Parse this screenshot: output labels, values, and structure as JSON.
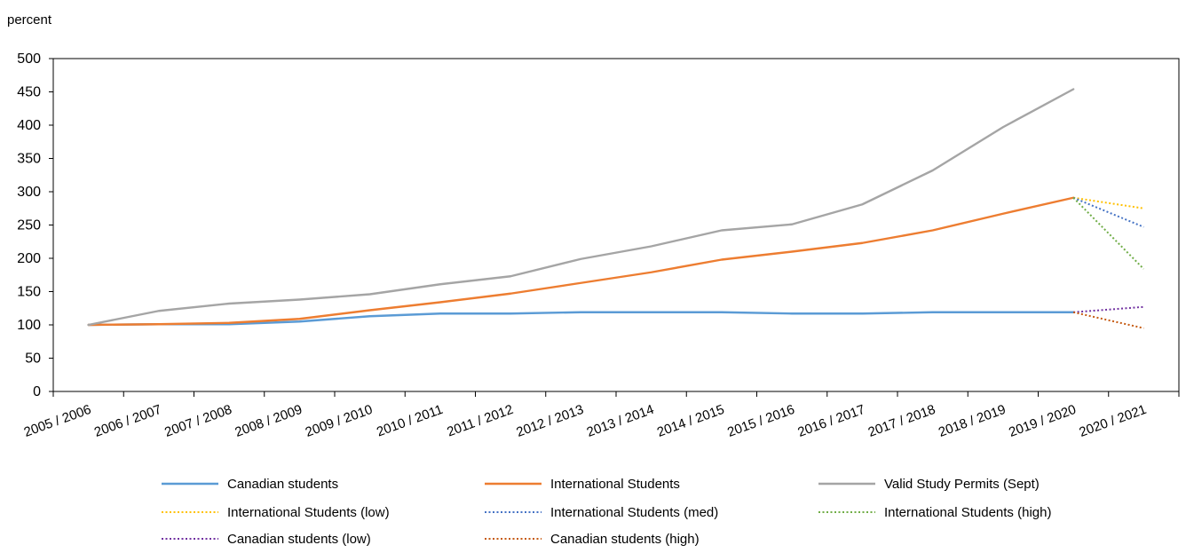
{
  "chart_data": {
    "type": "line",
    "ylabel": "percent",
    "ylim": [
      0,
      500
    ],
    "yticks": [
      0,
      50,
      100,
      150,
      200,
      250,
      300,
      350,
      400,
      450,
      500
    ],
    "categories": [
      "2005 / 2006",
      "2006 / 2007",
      "2007 / 2008",
      "2008 / 2009",
      "2009 / 2010",
      "2010 / 2011",
      "2011 / 2012",
      "2012 / 2013",
      "2013 / 2014",
      "2014 / 2015",
      "2015 / 2016",
      "2016 / 2017",
      "2017 / 2018",
      "2018 / 2019",
      "2019 / 2020",
      "2020 / 2021"
    ],
    "grid": false,
    "legend_position": "bottom",
    "series": [
      {
        "name": "Canadian students",
        "color": "#5B9BD5",
        "style": "solid",
        "values": [
          100,
          101,
          101,
          105,
          113,
          117,
          117,
          119,
          119,
          119,
          117,
          117,
          119,
          119,
          119,
          null
        ]
      },
      {
        "name": "International Students",
        "color": "#ED7D31",
        "style": "solid",
        "values": [
          100,
          101,
          103,
          109,
          122,
          134,
          147,
          163,
          179,
          198,
          210,
          223,
          242,
          267,
          291,
          null
        ]
      },
      {
        "name": "Valid Study Permits (Sept)",
        "color": "#A5A5A5",
        "style": "solid",
        "values": [
          100,
          121,
          132,
          138,
          146,
          161,
          173,
          199,
          218,
          242,
          251,
          281,
          332,
          397,
          454,
          null
        ]
      },
      {
        "name": "International Students (low)",
        "color": "#FFC000",
        "style": "dotted",
        "values": [
          null,
          null,
          null,
          null,
          null,
          null,
          null,
          null,
          null,
          null,
          null,
          null,
          null,
          null,
          291,
          275
        ]
      },
      {
        "name": "International Students (med)",
        "color": "#4472C4",
        "style": "dotted",
        "values": [
          null,
          null,
          null,
          null,
          null,
          null,
          null,
          null,
          null,
          null,
          null,
          null,
          null,
          null,
          291,
          247
        ]
      },
      {
        "name": "International Students (high)",
        "color": "#70AD47",
        "style": "dotted",
        "values": [
          null,
          null,
          null,
          null,
          null,
          null,
          null,
          null,
          null,
          null,
          null,
          null,
          null,
          null,
          291,
          184
        ]
      },
      {
        "name": "Canadian students (low)",
        "color": "#7030A0",
        "style": "dotted",
        "values": [
          null,
          null,
          null,
          null,
          null,
          null,
          null,
          null,
          null,
          null,
          null,
          null,
          null,
          null,
          119,
          127
        ]
      },
      {
        "name": "Canadian students (high)",
        "color": "#C55A11",
        "style": "dotted",
        "values": [
          null,
          null,
          null,
          null,
          null,
          null,
          null,
          null,
          null,
          null,
          null,
          null,
          null,
          null,
          119,
          95
        ]
      }
    ]
  }
}
